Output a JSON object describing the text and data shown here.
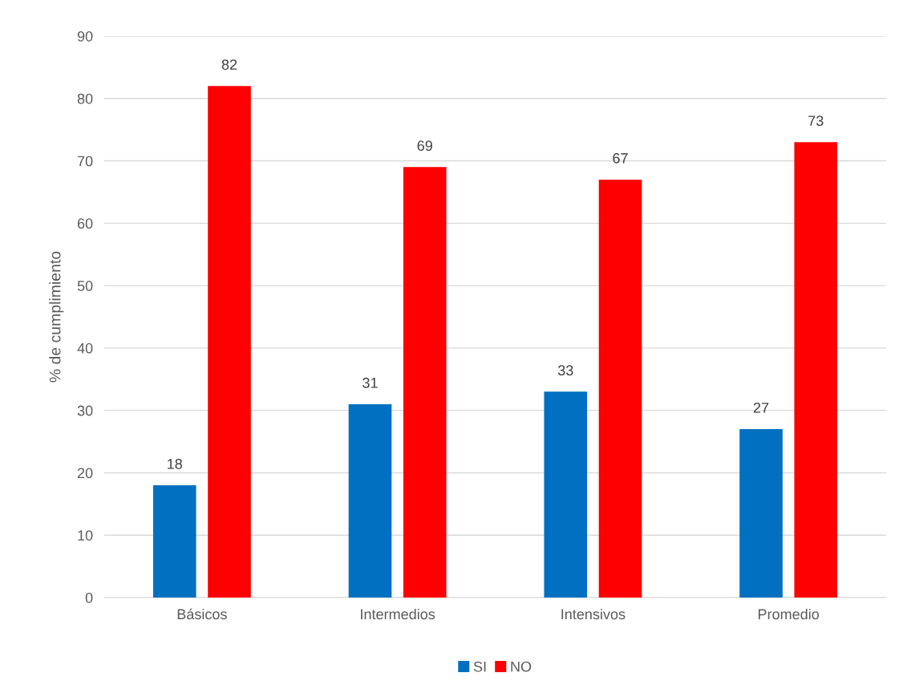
{
  "chart_data": {
    "type": "bar",
    "ylabel": "% de cumplimiento",
    "categories": [
      "Básicos",
      "Intermedios",
      "Intensivos",
      "Promedio"
    ],
    "series": [
      {
        "name": "SI",
        "color": "#0070c0",
        "values": [
          18,
          31,
          33,
          27
        ]
      },
      {
        "name": "NO",
        "color": "#ff0000",
        "values": [
          82,
          69,
          67,
          73
        ]
      }
    ],
    "ylim": [
      0,
      90
    ],
    "yticks": [
      0,
      10,
      20,
      30,
      40,
      50,
      60,
      70,
      80,
      90
    ],
    "grid": "y",
    "legend": "bottom",
    "data_labels": true
  }
}
